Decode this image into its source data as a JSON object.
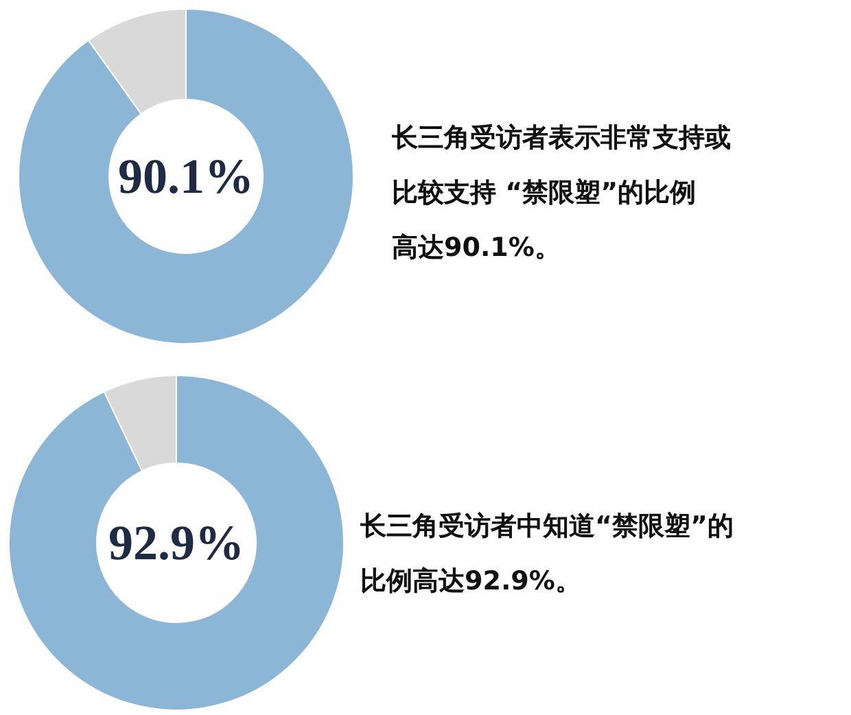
{
  "chart_data": [
    {
      "type": "donut",
      "categories": [
        null,
        null
      ],
      "values": [
        90.1,
        9.9
      ],
      "colors": [
        "#8cb6d6",
        "#d9d9d9"
      ],
      "annotations": [
        "90.1%",
        "长三角受访者表示非常支持或比较支持 “禁限塑”的比例高达90.1%。"
      ]
    },
    {
      "type": "donut",
      "categories": [
        null,
        null
      ],
      "values": [
        92.9,
        7.1
      ],
      "colors": [
        "#8cb6d6",
        "#d9d9d9"
      ],
      "annotations": [
        "92.9%",
        "长三角受访者中知道“禁限塑”的比例高达92.9%。"
      ]
    }
  ]
}
